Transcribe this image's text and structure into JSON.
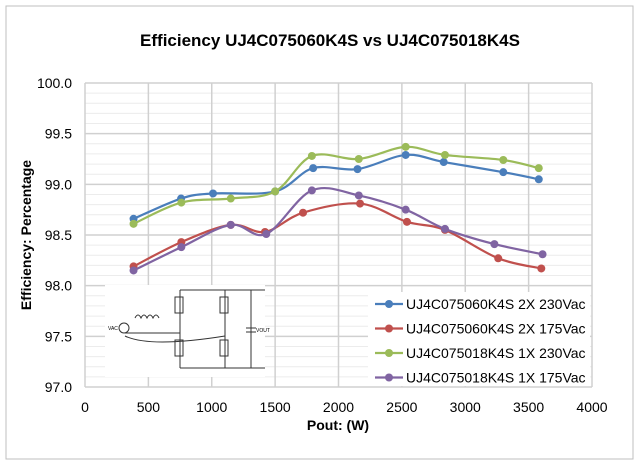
{
  "chart_data": {
    "type": "line",
    "title": "Efficiency UJ4C075060K4S vs UJ4C075018K4S",
    "xlabel": "Pout: (W)",
    "ylabel": "Efficiency: Percentage",
    "xlim": [
      0,
      4000
    ],
    "ylim": [
      97.0,
      100.0
    ],
    "xticks": [
      "0",
      "500",
      "1000",
      "1500",
      "2000",
      "2500",
      "3000",
      "3500",
      "4000"
    ],
    "yticks": [
      "97.0",
      "97.5",
      "98.0",
      "98.5",
      "99.0",
      "99.5",
      "100.0"
    ],
    "grid": true,
    "legend_position": "bottom-right",
    "series": [
      {
        "name": "UJ4C075060K4S 2X 230Vac",
        "color": "#4a7ebb",
        "x": [
          383,
          758,
          1010,
          1500,
          1800,
          2150,
          2530,
          2830,
          3300,
          3580
        ],
        "y": [
          98.66,
          98.86,
          98.91,
          98.93,
          99.16,
          99.15,
          99.29,
          99.22,
          99.12,
          99.05
        ]
      },
      {
        "name": "UJ4C075060K4S 2X 175Vac",
        "color": "#c0504d",
        "x": [
          383,
          760,
          1150,
          1420,
          1720,
          2170,
          2540,
          2840,
          3260,
          3600
        ],
        "y": [
          98.19,
          98.43,
          98.6,
          98.53,
          98.72,
          98.81,
          98.63,
          98.55,
          98.27,
          98.17
        ]
      },
      {
        "name": "UJ4C075018K4S 1X 230Vac",
        "color": "#9bbb59",
        "x": [
          383,
          760,
          1150,
          1500,
          1790,
          2160,
          2530,
          2840,
          3300,
          3580
        ],
        "y": [
          98.61,
          98.82,
          98.86,
          98.93,
          99.28,
          99.25,
          99.37,
          99.29,
          99.24,
          99.16
        ]
      },
      {
        "name": "UJ4C075018K4S 1X 175Vac",
        "color": "#8064a2",
        "x": [
          383,
          760,
          1150,
          1430,
          1790,
          2160,
          2530,
          2840,
          3230,
          3610
        ],
        "y": [
          98.15,
          98.38,
          98.6,
          98.51,
          98.94,
          98.89,
          98.75,
          98.56,
          98.41,
          98.31
        ]
      }
    ]
  },
  "circuit": {
    "vac_label": "VAC",
    "vout_label": "VOUT"
  }
}
